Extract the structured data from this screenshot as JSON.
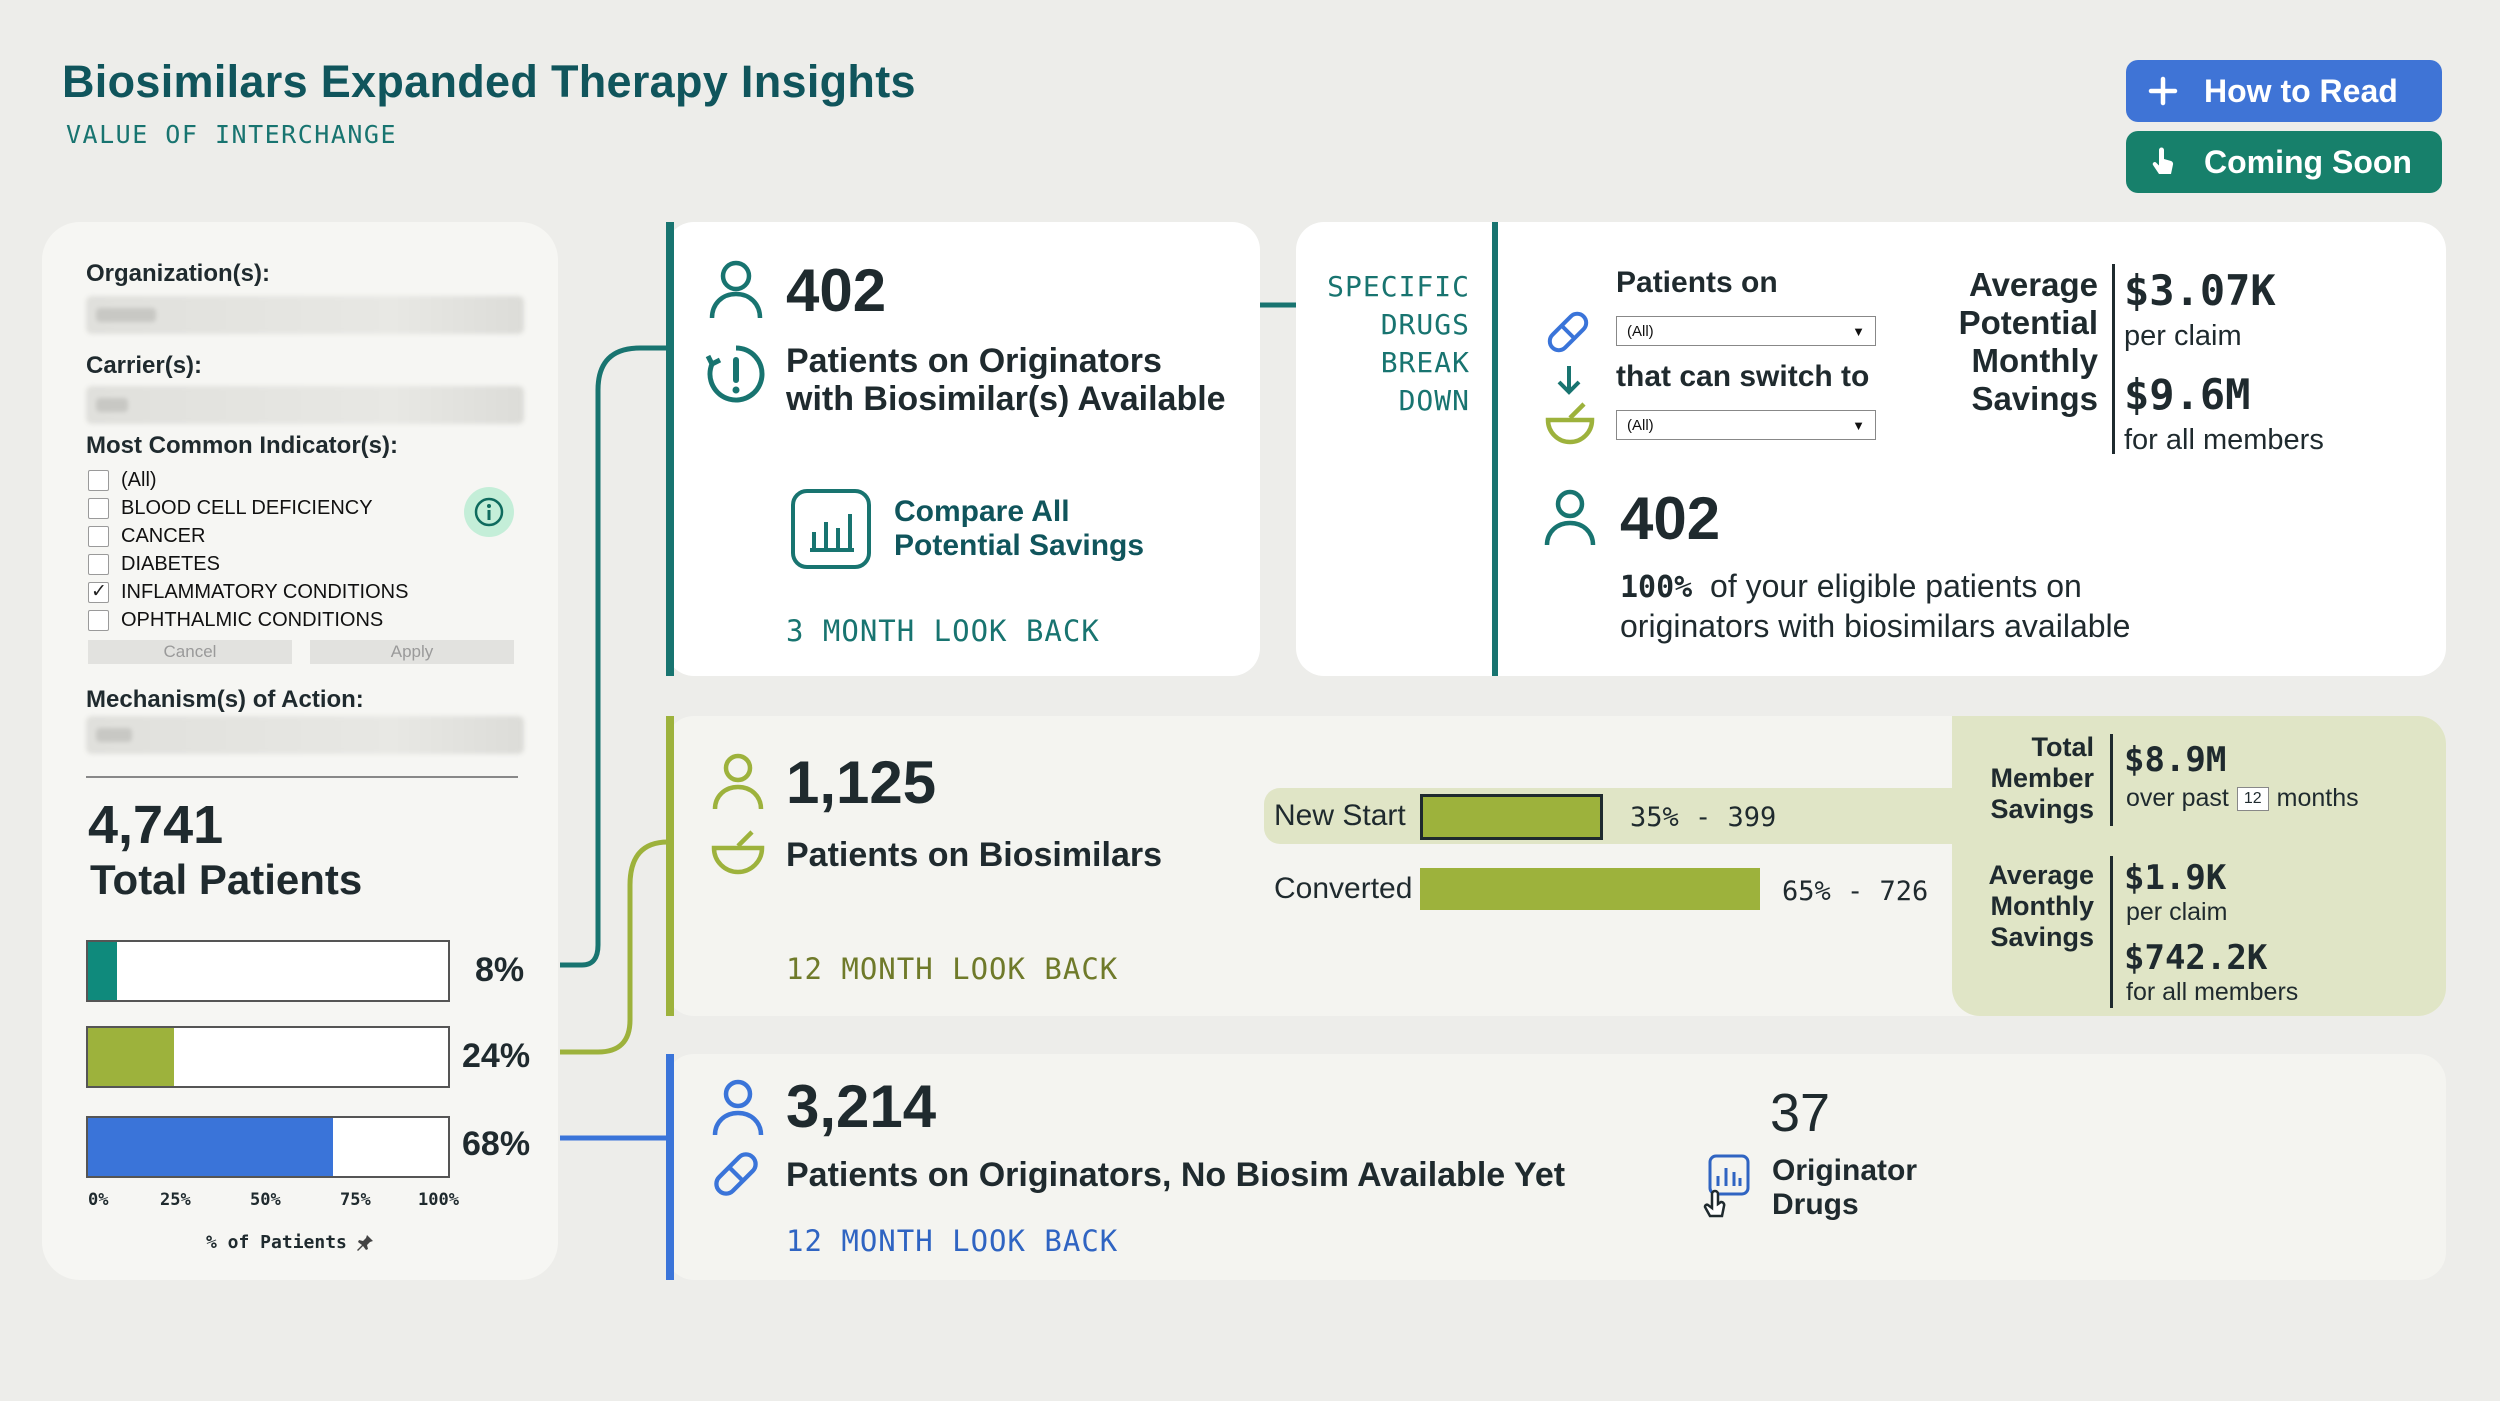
{
  "header": {
    "title": "Biosimilars Expanded Therapy Insights",
    "subtitle": "VALUE OF INTERCHANGE",
    "how_to_read": "How to Read",
    "coming_soon": "Coming Soon"
  },
  "filters": {
    "organization_label": "Organization(s):",
    "carrier_label": "Carrier(s):",
    "indicator_label": "Most Common Indicator(s):",
    "indicators": [
      {
        "label": "(All)",
        "checked": false
      },
      {
        "label": "BLOOD CELL DEFICIENCY",
        "checked": false
      },
      {
        "label": "CANCER",
        "checked": false
      },
      {
        "label": "DIABETES",
        "checked": false
      },
      {
        "label": "INFLAMMATORY CONDITIONS",
        "checked": true
      },
      {
        "label": "OPHTHALMIC CONDITIONS",
        "checked": false
      }
    ],
    "cancel_label": "Cancel",
    "apply_label": "Apply",
    "mechanism_label": "Mechanism(s) of Action:"
  },
  "totals": {
    "total_value": "4,741",
    "total_label": "Total Patients",
    "bars": [
      {
        "pct_label": "8%",
        "fraction": 0.08,
        "color": "#0f8a7c"
      },
      {
        "pct_label": "24%",
        "fraction": 0.24,
        "color": "#9db23c"
      },
      {
        "pct_label": "68%",
        "fraction": 0.68,
        "color": "#3a74d9"
      }
    ],
    "ticks": [
      "0%",
      "25%",
      "50%",
      "75%",
      "100%"
    ],
    "axis_label": "% of Patients"
  },
  "originators_available": {
    "value": "402",
    "label_line1": "Patients on Originators",
    "label_line2": "with Biosimilar(s) Available",
    "compare_line1": "Compare All",
    "compare_line2": "Potential Savings",
    "lookback": "3 MONTH LOOK BACK"
  },
  "breakdown": {
    "title_lines": [
      "SPECIFIC",
      "DRUGS",
      "BREAK",
      "DOWN"
    ],
    "patients_on_label": "Patients on",
    "patients_on_value": "(All)",
    "switch_to_label": "that can switch to",
    "switch_to_value": "(All)",
    "savings_label_lines": [
      "Average",
      "Potential",
      "Monthly",
      "Savings"
    ],
    "per_claim_value": "$3.07K",
    "per_claim_label": "per claim",
    "all_members_value": "$9.6M",
    "all_members_label": "for all members",
    "eligible_value": "402",
    "eligible_pct": "100%",
    "eligible_text_1": "of your eligible patients on",
    "eligible_text_2": "originators with biosimilars available"
  },
  "biosimilars": {
    "value": "1,125",
    "label": "Patients on Biosimilars",
    "lookback": "12 MONTH LOOK BACK",
    "new_start_label": "New Start",
    "new_start_fraction": 0.35,
    "new_start_stat": "35% - 399",
    "converted_label": "Converted",
    "converted_fraction": 0.65,
    "converted_stat": "65% - 726",
    "total_label_lines": [
      "Total",
      "Member",
      "Savings"
    ],
    "total_value": "$8.9M",
    "total_sub_1": "over past",
    "total_months": "12",
    "total_sub_2": "months",
    "avg_label_lines": [
      "Average",
      "Monthly",
      "Savings"
    ],
    "avg_claim_value": "$1.9K",
    "avg_claim_label": "per claim",
    "avg_members_value": "$742.2K",
    "avg_members_label": "for all members"
  },
  "no_biosim": {
    "value": "3,214",
    "label": "Patients on Originators, No Biosim Available Yet",
    "lookback": "12 MONTH LOOK BACK",
    "drug_count": "37",
    "drug_label_1": "Originator",
    "drug_label_2": "Drugs"
  },
  "colors": {
    "teal": "#187470",
    "green": "#9db23c",
    "blue": "#3a74d9"
  }
}
